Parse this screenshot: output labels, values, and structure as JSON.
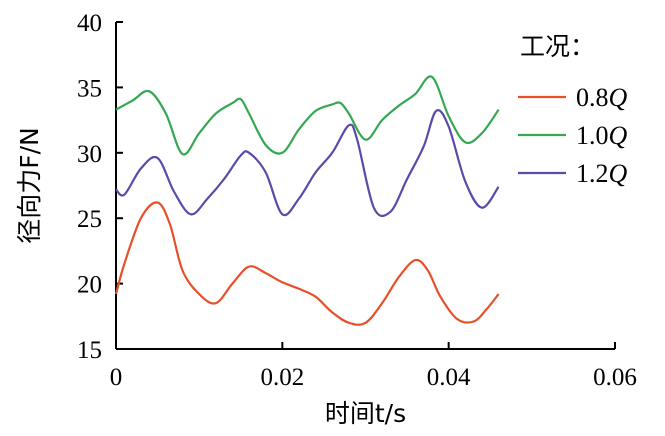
{
  "chart_data": {
    "type": "line",
    "xlabel": "时间t/s",
    "ylabel": "径向力F/N",
    "xlim": [
      0,
      0.06
    ],
    "ylim": [
      15,
      40
    ],
    "xticks": [
      "0",
      "0.02",
      "0.04",
      "0.06"
    ],
    "yticks": [
      "15",
      "20",
      "25",
      "30",
      "35",
      "40"
    ],
    "grid": false,
    "legend_title": "工况：",
    "legend_position": "top-right",
    "series": [
      {
        "name": "0.8Q",
        "name_num": "0.8",
        "name_var": "Q",
        "color": "#e8502a",
        "x": [
          0,
          0.001,
          0.003,
          0.005,
          0.0065,
          0.008,
          0.01,
          0.012,
          0.014,
          0.016,
          0.018,
          0.02,
          0.022,
          0.024,
          0.026,
          0.028,
          0.03,
          0.032,
          0.034,
          0.036,
          0.0375,
          0.039,
          0.041,
          0.043,
          0.0445,
          0.046
        ],
        "y": [
          19.2,
          21.5,
          25.0,
          26.2,
          24.5,
          21.0,
          19.2,
          18.5,
          20.0,
          21.3,
          20.8,
          20.1,
          19.6,
          19.0,
          17.8,
          17.0,
          17.0,
          18.5,
          20.5,
          21.8,
          21.0,
          19.0,
          17.3,
          17.1,
          18.0,
          19.2
        ]
      },
      {
        "name": "1.0Q",
        "name_num": "1.0",
        "name_var": "Q",
        "color": "#34a853",
        "x": [
          0,
          0.002,
          0.004,
          0.006,
          0.008,
          0.01,
          0.012,
          0.014,
          0.015,
          0.016,
          0.018,
          0.02,
          0.022,
          0.024,
          0.026,
          0.027,
          0.028,
          0.03,
          0.032,
          0.034,
          0.036,
          0.038,
          0.04,
          0.042,
          0.044,
          0.046
        ],
        "y": [
          33.3,
          34.0,
          34.7,
          33.0,
          29.9,
          31.5,
          33.0,
          33.8,
          34.1,
          33.0,
          30.6,
          30.0,
          31.8,
          33.2,
          33.7,
          33.8,
          33.0,
          31.0,
          32.5,
          33.6,
          34.5,
          35.8,
          32.8,
          30.8,
          31.5,
          33.3
        ]
      },
      {
        "name": "1.2Q",
        "name_num": "1.2",
        "name_var": "Q",
        "color": "#5b4aa8",
        "x": [
          0,
          0.001,
          0.003,
          0.005,
          0.007,
          0.009,
          0.011,
          0.013,
          0.015,
          0.016,
          0.018,
          0.02,
          0.022,
          0.024,
          0.026,
          0.028,
          0.029,
          0.031,
          0.033,
          0.035,
          0.037,
          0.0385,
          0.04,
          0.042,
          0.044,
          0.046
        ],
        "y": [
          27.2,
          26.8,
          28.8,
          29.6,
          27.0,
          25.3,
          26.5,
          28.0,
          29.8,
          30.0,
          28.5,
          25.3,
          26.5,
          28.5,
          30.0,
          32.1,
          31.0,
          25.8,
          25.5,
          28.0,
          30.5,
          33.2,
          32.0,
          27.8,
          25.8,
          27.4
        ]
      }
    ]
  }
}
